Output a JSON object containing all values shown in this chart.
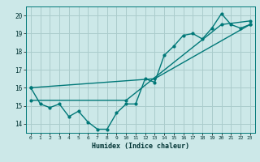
{
  "title": "",
  "xlabel": "Humidex (Indice chaleur)",
  "bg_color": "#cce8e8",
  "grid_color": "#aacccc",
  "line_color": "#007878",
  "xlim": [
    -0.5,
    23.5
  ],
  "ylim": [
    13.5,
    20.5
  ],
  "yticks": [
    14,
    15,
    16,
    17,
    18,
    19,
    20
  ],
  "xticks": [
    0,
    1,
    2,
    3,
    4,
    5,
    6,
    7,
    8,
    9,
    10,
    11,
    12,
    13,
    14,
    15,
    16,
    17,
    18,
    19,
    20,
    21,
    22,
    23
  ],
  "line1_x": [
    0,
    1,
    2,
    3,
    4,
    5,
    6,
    7,
    8,
    9,
    10,
    11,
    12,
    13,
    14,
    15,
    16,
    17,
    18,
    19,
    20,
    21,
    22,
    23
  ],
  "line1_y": [
    16.0,
    15.1,
    14.9,
    15.1,
    14.4,
    14.7,
    14.1,
    13.7,
    13.7,
    14.6,
    15.1,
    15.1,
    16.5,
    16.3,
    17.8,
    18.3,
    18.9,
    19.0,
    18.7,
    19.3,
    20.1,
    19.5,
    19.3,
    19.5
  ],
  "line2_x": [
    0,
    10,
    20,
    23
  ],
  "line2_y": [
    15.3,
    15.3,
    19.5,
    19.7
  ],
  "line3_x": [
    0,
    13,
    23
  ],
  "line3_y": [
    16.0,
    16.5,
    19.5
  ]
}
